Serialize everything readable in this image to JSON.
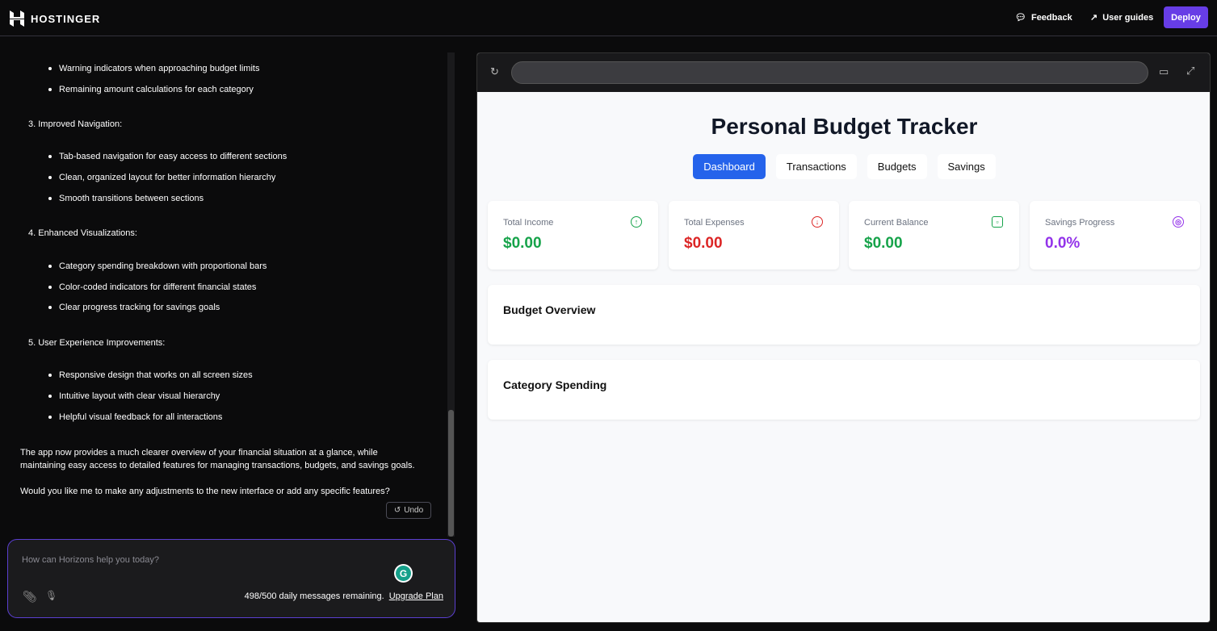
{
  "header": {
    "brand": "HOSTINGER",
    "feedback": "Feedback",
    "user_guides": "User guides",
    "deploy": "Deploy",
    "accent": "#673de6"
  },
  "chat": {
    "lines": [
      {
        "type": "bullet",
        "text": "Warning indicators when approaching budget limits"
      },
      {
        "type": "bullet",
        "text": "Remaining amount calculations for each category"
      },
      {
        "type": "num",
        "text": "3. Improved Navigation:"
      },
      {
        "type": "bullet",
        "text": "Tab-based navigation for easy access to different sections"
      },
      {
        "type": "bullet",
        "text": "Clean, organized layout for better information hierarchy"
      },
      {
        "type": "bullet",
        "text": "Smooth transitions between sections"
      },
      {
        "type": "num",
        "text": "4. Enhanced Visualizations:"
      },
      {
        "type": "bullet",
        "text": "Category spending breakdown with proportional bars"
      },
      {
        "type": "bullet",
        "text": "Color-coded indicators for different financial states"
      },
      {
        "type": "bullet",
        "text": "Clear progress tracking for savings goals"
      },
      {
        "type": "num",
        "text": "5. User Experience Improvements:"
      },
      {
        "type": "bullet",
        "text": "Responsive design that works on all screen sizes"
      },
      {
        "type": "bullet",
        "text": "Intuitive layout with clear visual hierarchy"
      },
      {
        "type": "bullet",
        "text": "Helpful visual feedback for all interactions"
      }
    ],
    "summary": "The app now provides a much clearer overview of your financial situation at a glance, while maintaining easy access to detailed features for managing transactions, budgets, and savings goals.",
    "question": "Would you like me to make any adjustments to the new interface or add any specific features?",
    "undo": "Undo",
    "input_placeholder": "How can Horizons help you today?",
    "remaining": "498/500 daily messages remaining.",
    "upgrade": "Upgrade Plan"
  },
  "preview": {
    "url": "",
    "title": "Personal Budget Tracker",
    "tabs": [
      {
        "label": "Dashboard",
        "active": true
      },
      {
        "label": "Transactions"
      },
      {
        "label": "Budgets"
      },
      {
        "label": "Savings"
      }
    ],
    "cards": [
      {
        "label": "Total Income",
        "value": "$0.00",
        "color": "#16a34a",
        "icon": "arrow-up-circle-icon"
      },
      {
        "label": "Total Expenses",
        "value": "$0.00",
        "color": "#dc2626",
        "icon": "arrow-down-circle-icon"
      },
      {
        "label": "Current Balance",
        "value": "$0.00",
        "color": "#16a34a",
        "icon": "wallet-icon"
      },
      {
        "label": "Savings Progress",
        "value": "0.0%",
        "color": "#9333ea",
        "icon": "target-icon"
      }
    ],
    "sections": [
      "Budget Overview",
      "Category Spending"
    ]
  }
}
